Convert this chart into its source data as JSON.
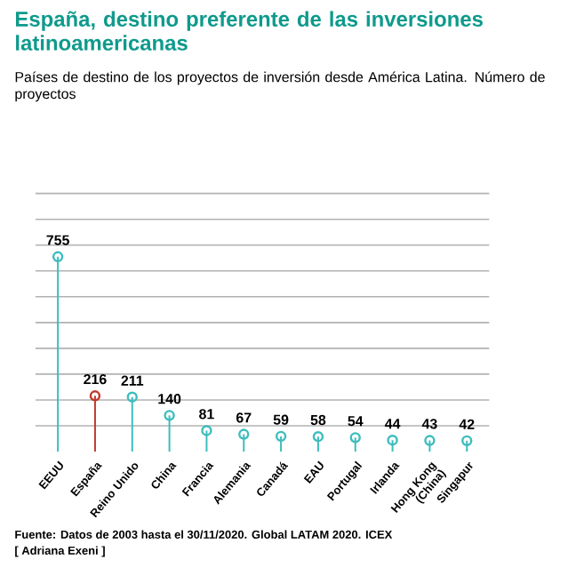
{
  "chart_data": {
    "type": "lollipop",
    "title": "España, destino preferente de las inversiones latinoamericanas",
    "subtitle": "Países de destino de los proyectos de inversión desde América Latina. Número de proyectos",
    "categories": [
      "EEUU",
      "España",
      "Reino Unido",
      "China",
      "Francia",
      "Alemania",
      "Canadá",
      "EAU",
      "Portugal",
      "Irlanda",
      "Hong Kong (China)",
      "Singapur"
    ],
    "values": [
      755,
      216,
      211,
      140,
      81,
      67,
      59,
      58,
      54,
      44,
      43,
      42
    ],
    "value_labels": [
      "755",
      "216",
      "211",
      "140",
      "81",
      "67",
      "59",
      "58",
      "54",
      "44",
      "43",
      "42"
    ],
    "colors": [
      "#3dbdbd",
      "#c0392b",
      "#3dbdbd",
      "#3dbdbd",
      "#3dbdbd",
      "#3dbdbd",
      "#3dbdbd",
      "#3dbdbd",
      "#3dbdbd",
      "#3dbdbd",
      "#3dbdbd",
      "#3dbdbd"
    ],
    "ylim": [
      0,
      1000
    ],
    "yticks": [
      {
        "value": 100,
        "label": null
      },
      {
        "value": 200,
        "label": null
      },
      {
        "value": 300,
        "label": null
      },
      {
        "value": 400,
        "label": null
      },
      {
        "value": 500,
        "label": null
      },
      {
        "value": 600,
        "label": null
      },
      {
        "value": 700,
        "label": null
      },
      {
        "value": 800,
        "label": null
      },
      {
        "value": 900,
        "label": null
      },
      {
        "value": 1000,
        "label": null
      }
    ],
    "grid": "y",
    "marker": "circle",
    "annotations": [
      "Fuente: Datos de 2003 hasta el 30/11/2020. Global LATAM 2020. ICEX",
      "[ Adriana Exeni ]"
    ]
  }
}
